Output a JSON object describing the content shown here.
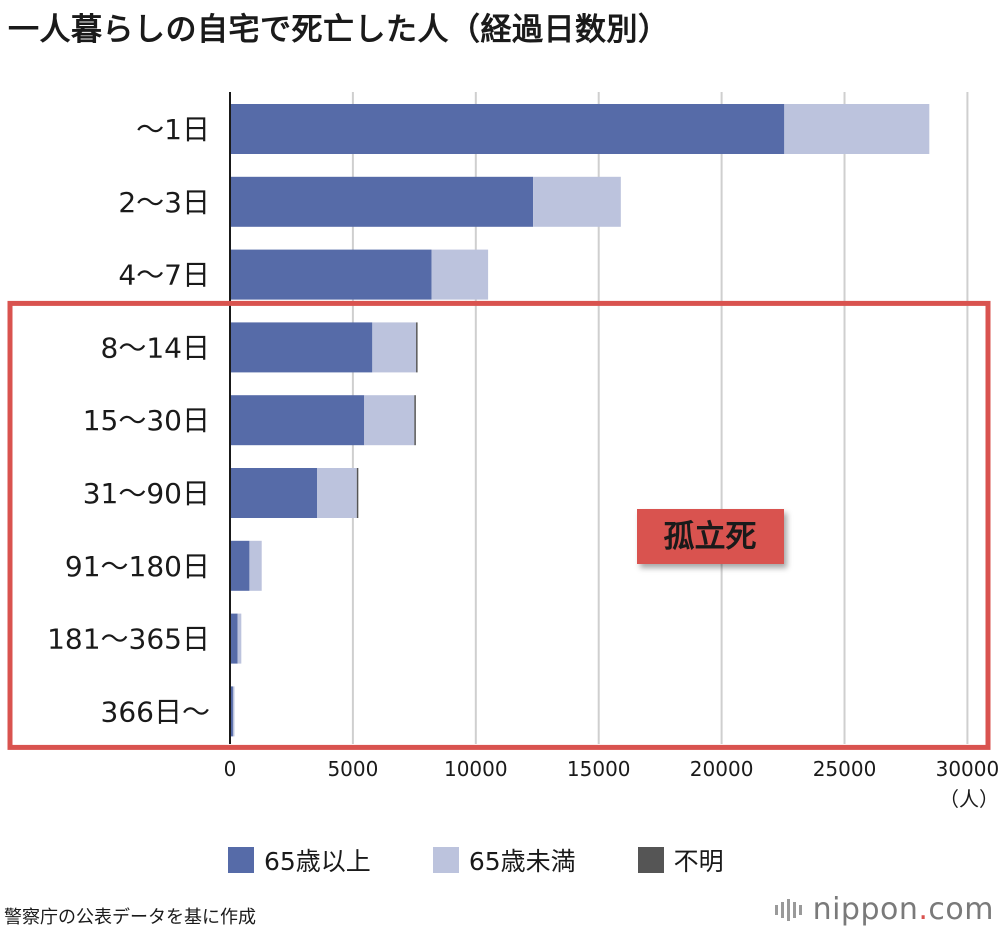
{
  "title": "一人暮らしの自宅で死亡した人（経過日数別）",
  "chart_data": {
    "type": "bar",
    "orientation": "horizontal",
    "stacked": true,
    "categories": [
      "〜1日",
      "2〜3日",
      "4〜7日",
      "8〜14日",
      "15〜30日",
      "31〜90日",
      "91〜180日",
      "181〜365日",
      "366日〜"
    ],
    "series": [
      {
        "name": "65歳以上",
        "color": "#566ba8",
        "values": [
          22550,
          12330,
          8200,
          5790,
          5460,
          3540,
          790,
          310,
          120
        ]
      },
      {
        "name": "65歳未満",
        "color": "#bcc3dd",
        "values": [
          5900,
          3570,
          2300,
          1780,
          2040,
          1620,
          500,
          150,
          40
        ]
      },
      {
        "name": "不明",
        "color": "#555555",
        "values": [
          0,
          0,
          0,
          50,
          50,
          60,
          0,
          0,
          0
        ]
      }
    ],
    "xlim": [
      0,
      31000
    ],
    "xticks": [
      0,
      5000,
      10000,
      15000,
      20000,
      25000,
      30000
    ],
    "unit_label": "（人）",
    "grid": true,
    "legend_position": "bottom",
    "annotation": {
      "label": "孤立死",
      "color": "#d9534f",
      "categories": [
        "8〜14日",
        "15〜30日",
        "31〜90日",
        "91〜180日",
        "181〜365日",
        "366日〜"
      ]
    }
  },
  "source": "警察庁の公表データを基に作成",
  "brand": {
    "name": "nippon",
    "dot": ".",
    "suffix": "com"
  }
}
